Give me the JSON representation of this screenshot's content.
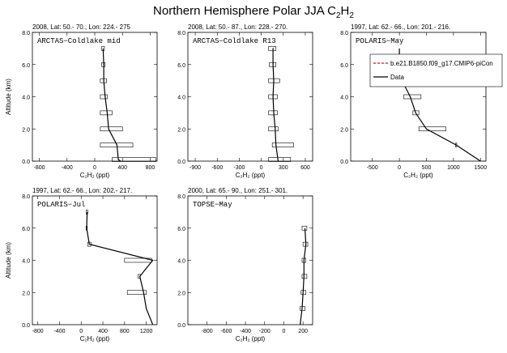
{
  "figure": {
    "title_main": "Northern Hemisphere Polar JJA C",
    "title_sub": "2",
    "title_mid": "H",
    "title_sub2": "2"
  },
  "chart_data": [
    {
      "type": "line",
      "header": "2008, Lat:  50.- 70., Lon: 224.- 275",
      "panel_label": "ARCTAS−Coldlake mid",
      "xlabel": "C₂H₂ (ppt)",
      "ylabel": "Altitude (km)",
      "xlim": [
        -900,
        900
      ],
      "ylim": [
        0,
        8
      ],
      "xticks": [
        -800,
        -400,
        0,
        400,
        800
      ],
      "yticks": [
        0.0,
        2.0,
        4.0,
        6.0,
        8.0
      ],
      "profile": {
        "x": [
          370,
          340,
          320,
          200,
          180,
          150,
          130,
          130,
          120,
          120
        ],
        "y": [
          0.0,
          0.1,
          1.0,
          2.0,
          3.0,
          4.0,
          5.0,
          6.0,
          7.0,
          7.0
        ]
      },
      "boxes": [
        {
          "y": 0.1,
          "lo": 250,
          "hi": 880
        },
        {
          "y": 1.0,
          "lo": 80,
          "hi": 550
        },
        {
          "y": 2.0,
          "lo": 80,
          "hi": 400
        },
        {
          "y": 3.0,
          "lo": 80,
          "hi": 250
        },
        {
          "y": 4.0,
          "lo": 80,
          "hi": 180
        },
        {
          "y": 5.0,
          "lo": 80,
          "hi": 170
        },
        {
          "y": 6.0,
          "lo": 100,
          "hi": 150
        },
        {
          "y": 7.0,
          "lo": 100,
          "hi": 140
        }
      ]
    },
    {
      "type": "line",
      "header": "2008, Lat:  50.- 87., Lon: 228.- 270.",
      "panel_label": "ARCTAS−Coldlake R13",
      "xlabel": "C₂H₂ (ppt)",
      "ylabel": "",
      "xlim": [
        -1000,
        700
      ],
      "ylim": [
        0,
        8
      ],
      "xticks": [
        -900,
        -600,
        -300,
        0,
        300,
        600
      ],
      "yticks": [
        0.0,
        2.0,
        4.0,
        6.0,
        8.0
      ],
      "profile": {
        "x": [
          230,
          200,
          190,
          170,
          160,
          170,
          160,
          160,
          155
        ],
        "y": [
          0.0,
          1.0,
          2.0,
          3.0,
          4.0,
          5.0,
          6.0,
          7.0,
          7.0
        ]
      },
      "boxes": [
        {
          "y": 0.1,
          "lo": 100,
          "hi": 400
        },
        {
          "y": 1.0,
          "lo": 150,
          "hi": 440
        },
        {
          "y": 2.0,
          "lo": 100,
          "hi": 230
        },
        {
          "y": 3.0,
          "lo": 100,
          "hi": 220
        },
        {
          "y": 4.0,
          "lo": 100,
          "hi": 220
        },
        {
          "y": 5.0,
          "lo": 100,
          "hi": 250
        },
        {
          "y": 6.0,
          "lo": 110,
          "hi": 200
        },
        {
          "y": 7.0,
          "lo": 100,
          "hi": 200
        }
      ]
    },
    {
      "type": "line",
      "header": "1997, Lat: 62.- 66., Lon: 201.- 216.",
      "panel_label": "POLARIS−May",
      "xlabel": "C₂H₂ (ppt)",
      "ylabel": "",
      "xlim": [
        -900,
        1600
      ],
      "ylim": [
        0,
        8
      ],
      "xticks": [
        -500,
        0,
        500,
        1000,
        1500
      ],
      "yticks": [
        0.0,
        2.0,
        4.0,
        6.0,
        8.0
      ],
      "profile": {
        "x": [
          1500,
          1050,
          500,
          300,
          200,
          50,
          0,
          0
        ],
        "y": [
          0.0,
          1.0,
          2.0,
          3.0,
          4.0,
          5.0,
          6.0,
          7.0
        ]
      },
      "boxes": [
        {
          "y": 1.0,
          "lo": 1040,
          "hi": 1060
        },
        {
          "y": 2.0,
          "lo": 360,
          "hi": 860
        },
        {
          "y": 3.0,
          "lo": 250,
          "hi": 360
        },
        {
          "y": 4.0,
          "lo": 80,
          "hi": 400
        }
      ],
      "legend": {
        "entries": [
          {
            "name": "b.e21.B1850.f09_g17.CMIP6-piCon",
            "style": "dashed",
            "color": "#ff0000"
          },
          {
            "name": "Data",
            "style": "solid",
            "color": "#000000"
          }
        ]
      }
    },
    {
      "type": "line",
      "header": "1997, Lat: 62.- 66., Lon: 202.- 217.",
      "panel_label": "POLARIS−Jul",
      "xlabel": "C₂H₂ (ppt)",
      "ylabel": "Altitude (km)",
      "xlim": [
        -900,
        1400
      ],
      "ylim": [
        0,
        8
      ],
      "xticks": [
        -800,
        -400,
        0,
        400,
        800,
        1200
      ],
      "yticks": [
        0.0,
        2.0,
        4.0,
        6.0,
        8.0
      ],
      "profile": {
        "x": [
          1320,
          1200,
          1150,
          1080,
          1320,
          150,
          100,
          110,
          110
        ],
        "y": [
          0.0,
          1.0,
          2.0,
          3.0,
          4.0,
          5.0,
          6.0,
          7.0,
          7.0
        ]
      },
      "boxes": [
        {
          "y": 2.0,
          "lo": 850,
          "hi": 1200
        },
        {
          "y": 3.0,
          "lo": 1050,
          "hi": 1090
        },
        {
          "y": 4.0,
          "lo": 800,
          "hi": 1300
        },
        {
          "y": 5.0,
          "lo": 120,
          "hi": 180
        },
        {
          "y": 6.0,
          "lo": 90,
          "hi": 110
        },
        {
          "y": 7.0,
          "lo": 90,
          "hi": 120
        }
      ]
    },
    {
      "type": "line",
      "header": "2000, Lat: 65.- 90., Lon: 251.- 301.",
      "panel_label": "TOPSE−May",
      "xlabel": "C₂H₂ (ppt)",
      "ylabel": "",
      "xlim": [
        -1000,
        300
      ],
      "ylim": [
        0,
        8
      ],
      "xticks": [
        -800,
        -600,
        -400,
        -200,
        0,
        200
      ],
      "yticks": [
        0.0,
        2.0,
        4.0,
        6.0,
        8.0
      ],
      "profile": {
        "x": [
          170,
          190,
          200,
          210,
          210,
          230,
          220,
          220
        ],
        "y": [
          0.0,
          1.0,
          2.0,
          3.0,
          4.0,
          5.0,
          6.0,
          6.0
        ]
      },
      "boxes": [
        {
          "y": 1.0,
          "lo": 170,
          "hi": 220
        },
        {
          "y": 2.0,
          "lo": 180,
          "hi": 230
        },
        {
          "y": 3.0,
          "lo": 190,
          "hi": 240
        },
        {
          "y": 4.0,
          "lo": 190,
          "hi": 230
        },
        {
          "y": 5.0,
          "lo": 200,
          "hi": 250
        },
        {
          "y": 6.0,
          "lo": 190,
          "hi": 240
        }
      ]
    }
  ]
}
